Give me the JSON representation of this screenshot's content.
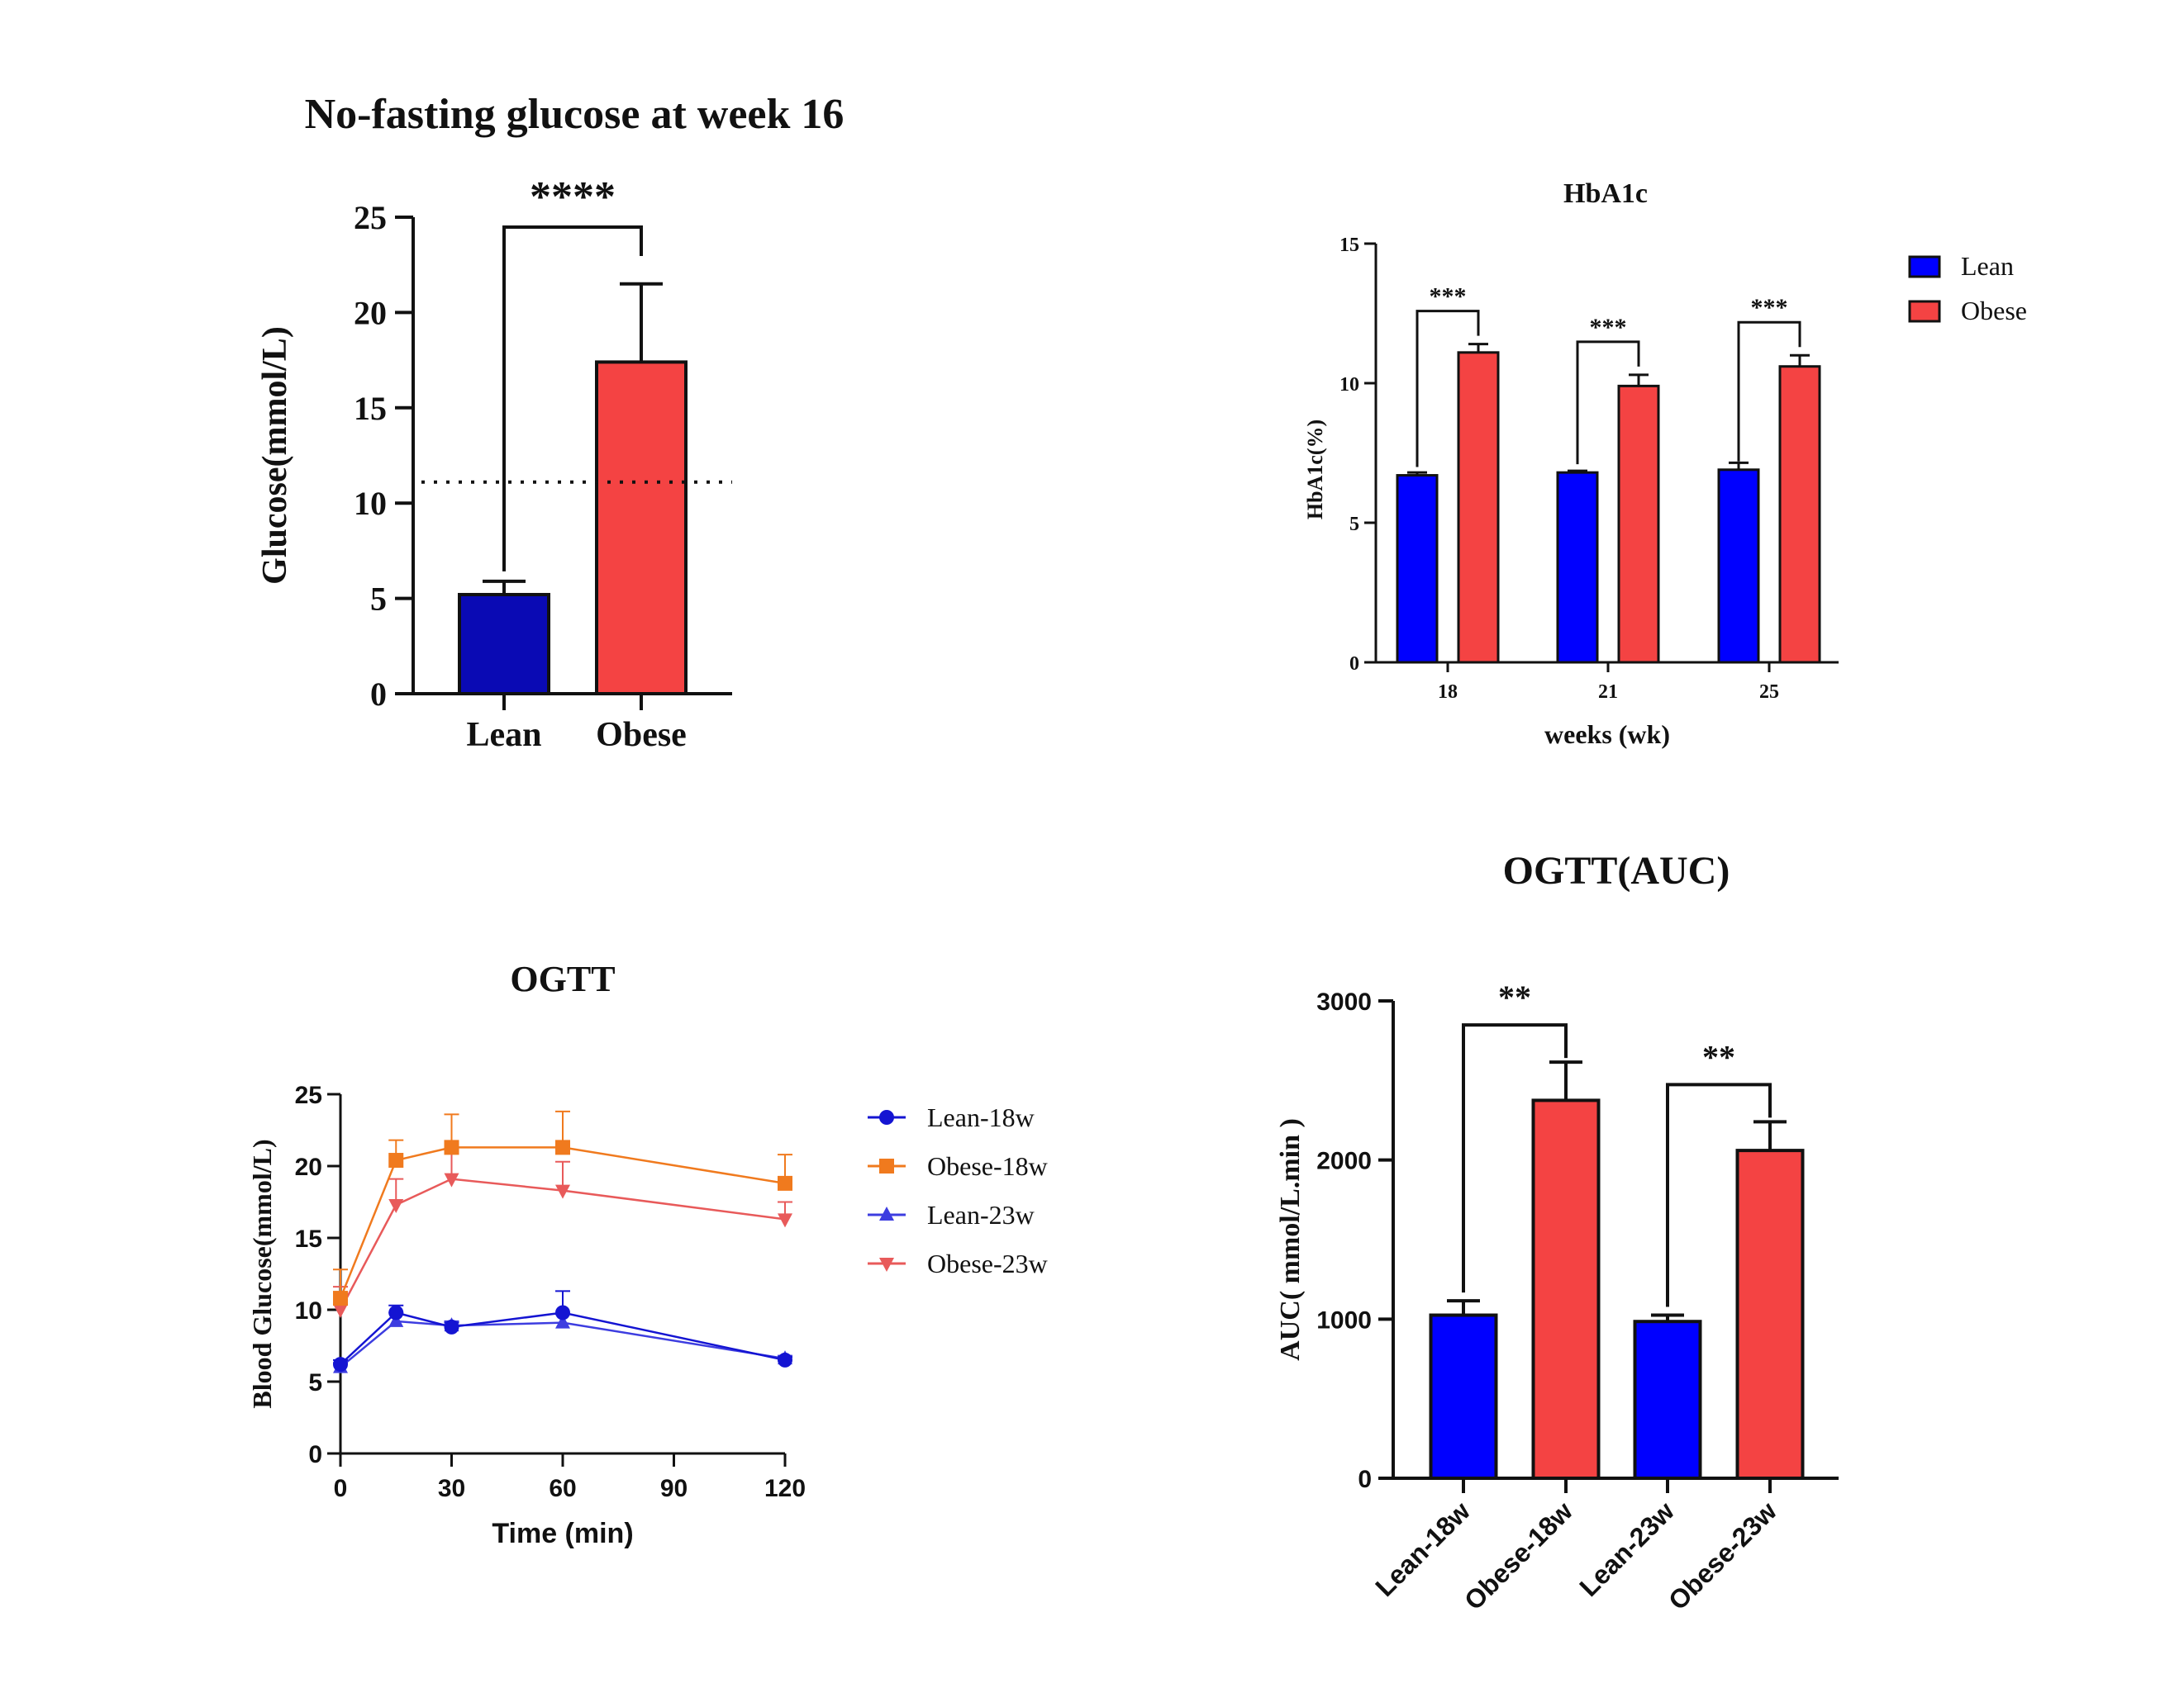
{
  "colors": {
    "lean_dark": "#0a0ab4",
    "lean": "#0000ff",
    "obese": "#f44343",
    "orange": "#f07a1e",
    "pink": "#e85a5a",
    "blue_line": "#1414d2",
    "blue_line2": "#3d3de0",
    "axis": "#111111"
  },
  "chart_data": [
    {
      "id": "glucose16",
      "type": "bar",
      "title": "No-fasting glucose at week 16",
      "ylabel": "Glucose(mmol/L)",
      "xlabel": "",
      "ylim": [
        0,
        25
      ],
      "yticks": [
        "0",
        "5",
        "10",
        "15",
        "20",
        "25"
      ],
      "categories": [
        "Lean",
        "Obese"
      ],
      "values": [
        5.2,
        17.4
      ],
      "errors": [
        0.7,
        4.1
      ],
      "reference_line": 11.1,
      "significance": [
        {
          "from": 0,
          "to": 1,
          "label": "****"
        }
      ]
    },
    {
      "id": "hba1c",
      "type": "bar",
      "title": "HbA1c",
      "ylabel": "HbA1c(%)",
      "xlabel": "weeks  (wk)",
      "ylim": [
        0,
        15
      ],
      "yticks": [
        "0",
        "5",
        "10",
        "15"
      ],
      "categories": [
        "18",
        "21",
        "25"
      ],
      "series": [
        {
          "name": "Lean",
          "values": [
            6.7,
            6.8,
            6.9
          ],
          "errors": [
            0.1,
            0.06,
            0.25
          ]
        },
        {
          "name": "Obese",
          "values": [
            11.1,
            9.9,
            10.6
          ],
          "errors": [
            0.3,
            0.4,
            0.4
          ]
        }
      ],
      "significance": [
        "***",
        "***",
        "***"
      ],
      "legend": "right"
    },
    {
      "id": "ogtt",
      "type": "line",
      "title": "OGTT",
      "xlabel": "Time (min)",
      "ylabel": "Blood Glucose(mmol/L)",
      "xlim": [
        0,
        120
      ],
      "ylim": [
        0,
        25
      ],
      "xticks": [
        "0",
        "30",
        "60",
        "90",
        "120"
      ],
      "yticks": [
        "0",
        "5",
        "10",
        "15",
        "20",
        "25"
      ],
      "x": [
        0,
        15,
        30,
        60,
        120
      ],
      "series": [
        {
          "name": "Lean-18w",
          "values": [
            6.2,
            9.8,
            8.8,
            9.8,
            6.5
          ],
          "errors": [
            0.3,
            0.5,
            0.3,
            1.5,
            0.2
          ]
        },
        {
          "name": "Obese-18w",
          "values": [
            10.8,
            20.4,
            21.3,
            21.3,
            18.8
          ],
          "errors": [
            2.0,
            1.4,
            2.3,
            2.5,
            2.0
          ]
        },
        {
          "name": "Lean-23w",
          "values": [
            6.0,
            9.2,
            8.9,
            9.1,
            6.6
          ],
          "errors": [
            0.3,
            0.6,
            0.3,
            0.6,
            0.2
          ]
        },
        {
          "name": "Obese-23w",
          "values": [
            10.0,
            17.3,
            19.1,
            18.3,
            16.3
          ],
          "errors": [
            1.6,
            1.8,
            1.9,
            2.0,
            1.2
          ]
        }
      ],
      "legend": "right"
    },
    {
      "id": "auc",
      "type": "bar",
      "title": "OGTT(AUC)",
      "ylabel": "AUC( mmol/L.min )",
      "xlabel": "",
      "ylim": [
        0,
        3000
      ],
      "yticks": [
        "0",
        "1000",
        "2000",
        "3000"
      ],
      "categories": [
        "Lean-18w",
        "Obese-18w",
        "Lean-23w",
        "Obese-23w"
      ],
      "values": [
        1025,
        2375,
        985,
        2060
      ],
      "errors": [
        90,
        240,
        40,
        180
      ],
      "significance": [
        {
          "from": 0,
          "to": 1,
          "label": "**"
        },
        {
          "from": 2,
          "to": 3,
          "label": "**"
        }
      ]
    }
  ]
}
